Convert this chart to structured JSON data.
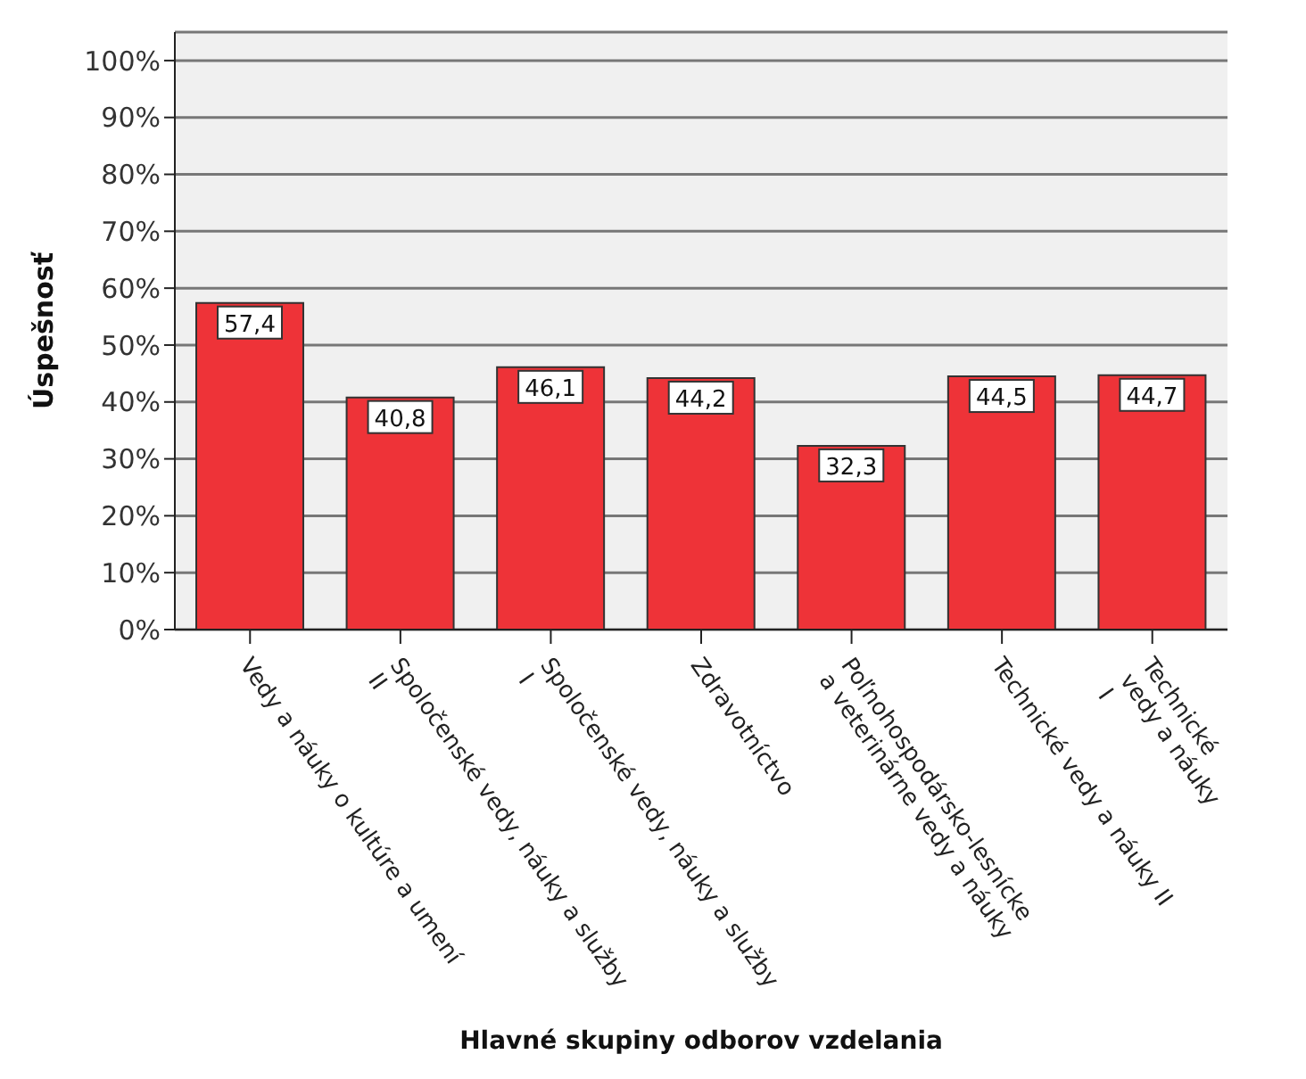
{
  "chart_data": {
    "type": "bar",
    "xlabel": "Hlavné skupiny odborov vzdelania",
    "ylabel": "Úspešnosť",
    "categories": [
      "Vedy a náuky o kultúre a umení",
      "Spoločenské vedy, náuky a služby\nII",
      "Spoločenské vedy, náuky a služby\nI",
      "Zdravotníctvo",
      "Poľnohospodársko-lesnícke\na veterinárne vedy a náuky",
      "Technické vedy a náuky II",
      "Technické\nvedy a náuky\nI"
    ],
    "values": [
      57.4,
      40.8,
      46.1,
      44.2,
      32.3,
      44.5,
      44.7
    ],
    "value_labels": [
      "57,4",
      "40,8",
      "46,1",
      "44,2",
      "32,3",
      "44,5",
      "44,7"
    ],
    "color": "#ee3338",
    "ylim": [
      0,
      105
    ],
    "yticks": [
      {
        "value": 0,
        "label": "0%"
      },
      {
        "value": 10,
        "label": "10%"
      },
      {
        "value": 20,
        "label": "20%"
      },
      {
        "value": 30,
        "label": "30%"
      },
      {
        "value": 40,
        "label": "40%"
      },
      {
        "value": 50,
        "label": "50%"
      },
      {
        "value": 60,
        "label": "60%"
      },
      {
        "value": 70,
        "label": "70%"
      },
      {
        "value": 80,
        "label": "80%"
      },
      {
        "value": 90,
        "label": "90%"
      },
      {
        "value": 100,
        "label": "100%"
      }
    ],
    "grid": "y",
    "legend": false
  }
}
